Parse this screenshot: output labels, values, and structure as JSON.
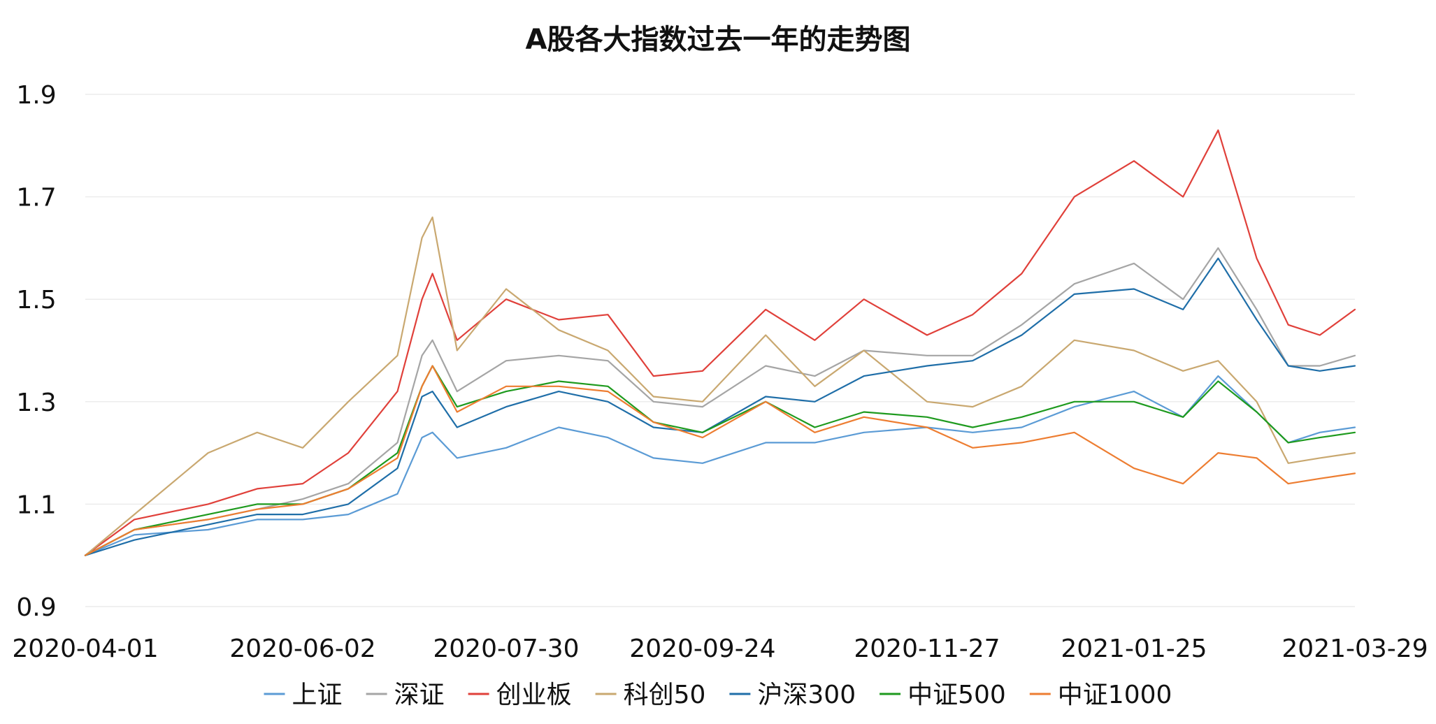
{
  "chart_data": {
    "type": "line",
    "title": "A股各大指数过去一年的走势图",
    "xlabel": "",
    "ylabel": "",
    "xlim": [
      "2020-04-01",
      "2021-03-29"
    ],
    "ylim": [
      0.9,
      1.9
    ],
    "y_ticks": [
      0.9,
      1.1,
      1.3,
      1.5,
      1.7,
      1.9
    ],
    "y_tick_labels": [
      "0.9",
      "1.1",
      "1.3",
      "1.5",
      "1.7",
      "1.9"
    ],
    "x_ticks": [
      "2020-04-01",
      "2020-06-02",
      "2020-07-30",
      "2020-09-24",
      "2020-11-27",
      "2021-01-25",
      "2021-03-29"
    ],
    "grid": true,
    "legend_position": "bottom",
    "series": [
      {
        "name": "上证",
        "color": "#5b9bd5",
        "x": [
          "2020-04-01",
          "2020-04-15",
          "2020-05-06",
          "2020-05-20",
          "2020-06-02",
          "2020-06-15",
          "2020-06-29",
          "2020-07-06",
          "2020-07-09",
          "2020-07-16",
          "2020-07-30",
          "2020-08-14",
          "2020-08-28",
          "2020-09-10",
          "2020-09-24",
          "2020-10-12",
          "2020-10-26",
          "2020-11-09",
          "2020-11-27",
          "2020-12-10",
          "2020-12-24",
          "2021-01-08",
          "2021-01-25",
          "2021-02-08",
          "2021-02-18",
          "2021-03-01",
          "2021-03-10",
          "2021-03-19",
          "2021-03-29"
        ],
        "y": [
          1.0,
          1.04,
          1.05,
          1.07,
          1.07,
          1.08,
          1.12,
          1.23,
          1.24,
          1.19,
          1.21,
          1.25,
          1.23,
          1.19,
          1.18,
          1.22,
          1.22,
          1.24,
          1.25,
          1.24,
          1.25,
          1.29,
          1.32,
          1.27,
          1.35,
          1.28,
          1.22,
          1.24,
          1.25
        ]
      },
      {
        "name": "深证",
        "color": "#a5a5a5",
        "x": [
          "2020-04-01",
          "2020-04-15",
          "2020-05-06",
          "2020-05-20",
          "2020-06-02",
          "2020-06-15",
          "2020-06-29",
          "2020-07-06",
          "2020-07-09",
          "2020-07-16",
          "2020-07-30",
          "2020-08-14",
          "2020-08-28",
          "2020-09-10",
          "2020-09-24",
          "2020-10-12",
          "2020-10-26",
          "2020-11-09",
          "2020-11-27",
          "2020-12-10",
          "2020-12-24",
          "2021-01-08",
          "2021-01-25",
          "2021-02-08",
          "2021-02-18",
          "2021-03-01",
          "2021-03-10",
          "2021-03-19",
          "2021-03-29"
        ],
        "y": [
          1.0,
          1.05,
          1.07,
          1.09,
          1.11,
          1.14,
          1.22,
          1.39,
          1.42,
          1.32,
          1.38,
          1.39,
          1.38,
          1.3,
          1.29,
          1.37,
          1.35,
          1.4,
          1.39,
          1.39,
          1.45,
          1.53,
          1.57,
          1.5,
          1.6,
          1.48,
          1.37,
          1.37,
          1.39
        ]
      },
      {
        "name": "创业板",
        "color": "#e0403a",
        "x": [
          "2020-04-01",
          "2020-04-15",
          "2020-05-06",
          "2020-05-20",
          "2020-06-02",
          "2020-06-15",
          "2020-06-29",
          "2020-07-06",
          "2020-07-09",
          "2020-07-16",
          "2020-07-30",
          "2020-08-14",
          "2020-08-28",
          "2020-09-10",
          "2020-09-24",
          "2020-10-12",
          "2020-10-26",
          "2020-11-09",
          "2020-11-27",
          "2020-12-10",
          "2020-12-24",
          "2021-01-08",
          "2021-01-25",
          "2021-02-08",
          "2021-02-18",
          "2021-03-01",
          "2021-03-10",
          "2021-03-19",
          "2021-03-29"
        ],
        "y": [
          1.0,
          1.07,
          1.1,
          1.13,
          1.14,
          1.2,
          1.32,
          1.5,
          1.55,
          1.42,
          1.5,
          1.46,
          1.47,
          1.35,
          1.36,
          1.48,
          1.42,
          1.5,
          1.43,
          1.47,
          1.55,
          1.7,
          1.77,
          1.7,
          1.83,
          1.58,
          1.45,
          1.43,
          1.48
        ]
      },
      {
        "name": "科创50",
        "color": "#c9a870",
        "x": [
          "2020-04-01",
          "2020-04-15",
          "2020-05-06",
          "2020-05-20",
          "2020-06-02",
          "2020-06-15",
          "2020-06-29",
          "2020-07-06",
          "2020-07-09",
          "2020-07-16",
          "2020-07-30",
          "2020-08-14",
          "2020-08-28",
          "2020-09-10",
          "2020-09-24",
          "2020-10-12",
          "2020-10-26",
          "2020-11-09",
          "2020-11-27",
          "2020-12-10",
          "2020-12-24",
          "2021-01-08",
          "2021-01-25",
          "2021-02-08",
          "2021-02-18",
          "2021-03-01",
          "2021-03-10",
          "2021-03-19",
          "2021-03-29"
        ],
        "y": [
          1.0,
          1.08,
          1.2,
          1.24,
          1.21,
          1.3,
          1.39,
          1.62,
          1.66,
          1.4,
          1.52,
          1.44,
          1.4,
          1.31,
          1.3,
          1.43,
          1.33,
          1.4,
          1.3,
          1.29,
          1.33,
          1.42,
          1.4,
          1.36,
          1.38,
          1.3,
          1.18,
          1.19,
          1.2
        ]
      },
      {
        "name": "沪深300",
        "color": "#1f6ea8",
        "x": [
          "2020-04-01",
          "2020-04-15",
          "2020-05-06",
          "2020-05-20",
          "2020-06-02",
          "2020-06-15",
          "2020-06-29",
          "2020-07-06",
          "2020-07-09",
          "2020-07-16",
          "2020-07-30",
          "2020-08-14",
          "2020-08-28",
          "2020-09-10",
          "2020-09-24",
          "2020-10-12",
          "2020-10-26",
          "2020-11-09",
          "2020-11-27",
          "2020-12-10",
          "2020-12-24",
          "2021-01-08",
          "2021-01-25",
          "2021-02-08",
          "2021-02-18",
          "2021-03-01",
          "2021-03-10",
          "2021-03-19",
          "2021-03-29"
        ],
        "y": [
          1.0,
          1.03,
          1.06,
          1.08,
          1.08,
          1.1,
          1.17,
          1.31,
          1.32,
          1.25,
          1.29,
          1.32,
          1.3,
          1.25,
          1.24,
          1.31,
          1.3,
          1.35,
          1.37,
          1.38,
          1.43,
          1.51,
          1.52,
          1.48,
          1.58,
          1.46,
          1.37,
          1.36,
          1.37
        ]
      },
      {
        "name": "中证500",
        "color": "#1e9a1e",
        "x": [
          "2020-04-01",
          "2020-04-15",
          "2020-05-06",
          "2020-05-20",
          "2020-06-02",
          "2020-06-15",
          "2020-06-29",
          "2020-07-06",
          "2020-07-09",
          "2020-07-16",
          "2020-07-30",
          "2020-08-14",
          "2020-08-28",
          "2020-09-10",
          "2020-09-24",
          "2020-10-12",
          "2020-10-26",
          "2020-11-09",
          "2020-11-27",
          "2020-12-10",
          "2020-12-24",
          "2021-01-08",
          "2021-01-25",
          "2021-02-08",
          "2021-02-18",
          "2021-03-01",
          "2021-03-10",
          "2021-03-19",
          "2021-03-29"
        ],
        "y": [
          1.0,
          1.05,
          1.08,
          1.1,
          1.1,
          1.13,
          1.2,
          1.33,
          1.37,
          1.29,
          1.32,
          1.34,
          1.33,
          1.26,
          1.24,
          1.3,
          1.25,
          1.28,
          1.27,
          1.25,
          1.27,
          1.3,
          1.3,
          1.27,
          1.34,
          1.28,
          1.22,
          1.23,
          1.24
        ]
      },
      {
        "name": "中证1000",
        "color": "#ed7d31",
        "x": [
          "2020-04-01",
          "2020-04-15",
          "2020-05-06",
          "2020-05-20",
          "2020-06-02",
          "2020-06-15",
          "2020-06-29",
          "2020-07-06",
          "2020-07-09",
          "2020-07-16",
          "2020-07-30",
          "2020-08-14",
          "2020-08-28",
          "2020-09-10",
          "2020-09-24",
          "2020-10-12",
          "2020-10-26",
          "2020-11-09",
          "2020-11-27",
          "2020-12-10",
          "2020-12-24",
          "2021-01-08",
          "2021-01-25",
          "2021-02-08",
          "2021-02-18",
          "2021-03-01",
          "2021-03-10",
          "2021-03-19",
          "2021-03-29"
        ],
        "y": [
          1.0,
          1.05,
          1.07,
          1.09,
          1.1,
          1.13,
          1.19,
          1.33,
          1.37,
          1.28,
          1.33,
          1.33,
          1.32,
          1.26,
          1.23,
          1.3,
          1.24,
          1.27,
          1.25,
          1.21,
          1.22,
          1.24,
          1.17,
          1.14,
          1.2,
          1.19,
          1.14,
          1.15,
          1.16
        ]
      }
    ]
  }
}
